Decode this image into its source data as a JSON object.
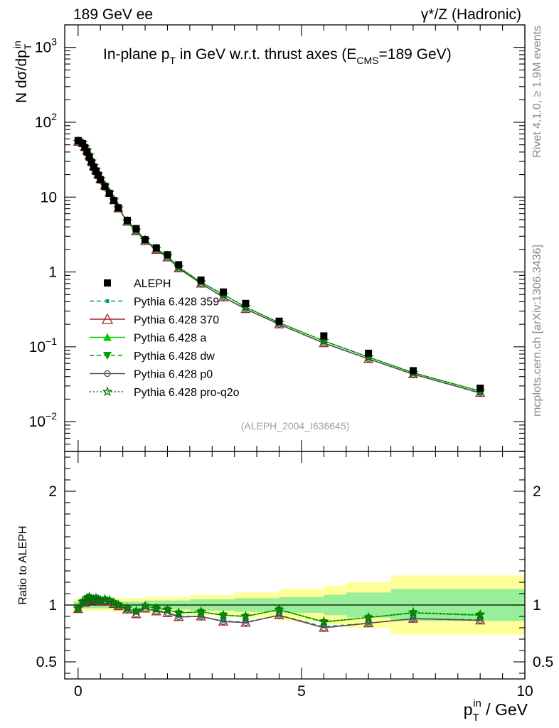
{
  "header": {
    "left_label": "189 GeV ee",
    "right_label": "γ*/Z (Hadronic)"
  },
  "side_labels": {
    "rivet": "Rivet 4.1.0, ≥ 1.9M events",
    "mcplots": "mcplots.cern.ch [arXiv:1306.3436]"
  },
  "colors": {
    "data": "#000000",
    "p359": "#009e73",
    "p370": "#a0202a",
    "pa": "#00cc00",
    "pdw": "#00a000",
    "pp0": "#505050",
    "pq2o": "#007000",
    "band_inner": "#99ee99",
    "band_outer": "#ffff99"
  },
  "chart_data": [
    {
      "type": "scatter",
      "title": "In-plane p_T in GeV w.r.t. thrust axes (E_CMS=189 GeV)",
      "title_parts": {
        "a": "In-plane p",
        "a_sub": "T",
        "b": " in GeV w.r.t. thrust axes (E",
        "b_sub": "CMS",
        "c": "=189 GeV)"
      },
      "ylabel": "N dσ/dp_T^in",
      "ylabel_parts": {
        "main": "N  dσ/dp",
        "sub": "T",
        "sup": "in"
      },
      "xlabel": "p_T^in / GeV",
      "xlim": [
        -0.3,
        10
      ],
      "ylim": [
        0.004,
        2000
      ],
      "yscale": "log",
      "x_ticks": [
        0,
        5,
        10
      ],
      "y_ticks": [
        {
          "value": 1000,
          "base": "10",
          "exp": "3"
        },
        {
          "value": 100,
          "base": "10",
          "exp": "2"
        },
        {
          "value": 10,
          "base": "10",
          "exp": ""
        },
        {
          "value": 1,
          "base": "1",
          "exp": ""
        },
        {
          "value": 0.1,
          "base": "10",
          "exp": "−1"
        },
        {
          "value": 0.01,
          "base": "10",
          "exp": "−2"
        }
      ],
      "watermark": "(ALEPH_2004_I636645)",
      "x": [
        0.0,
        0.1,
        0.15,
        0.2,
        0.25,
        0.3,
        0.35,
        0.4,
        0.45,
        0.5,
        0.6,
        0.7,
        0.8,
        0.9,
        1.1,
        1.3,
        1.5,
        1.75,
        2.0,
        2.25,
        2.75,
        3.25,
        3.75,
        4.5,
        5.5,
        6.5,
        7.5,
        9.0
      ],
      "series": [
        {
          "name": "ALEPH",
          "key": "data",
          "marker": "square",
          "line": "none",
          "values": [
            57,
            52,
            46,
            40,
            34,
            29,
            25,
            22,
            19.5,
            17,
            13.8,
            11.2,
            9.0,
            7.2,
            4.9,
            3.8,
            2.7,
            2.1,
            1.7,
            1.25,
            0.78,
            0.54,
            0.38,
            0.22,
            0.14,
            0.082,
            0.048,
            0.028
          ]
        },
        {
          "name": "Pythia 6.428 359",
          "key": "p359",
          "marker": "small-square",
          "line": "dashed",
          "values": [
            55,
            53,
            47,
            42,
            36,
            30,
            26,
            23,
            20.2,
            17.5,
            14.3,
            11.5,
            9.1,
            7.1,
            4.7,
            3.5,
            2.65,
            2.0,
            1.6,
            1.12,
            0.7,
            0.46,
            0.32,
            0.2,
            0.113,
            0.069,
            0.043,
            0.024
          ]
        },
        {
          "name": "Pythia 6.428 370",
          "key": "p370",
          "marker": "open-triangle",
          "line": "solid",
          "values": [
            55,
            53,
            47,
            42,
            36,
            30,
            26,
            23,
            20.2,
            17.5,
            14.3,
            11.5,
            9.1,
            7.1,
            4.7,
            3.5,
            2.6,
            1.98,
            1.57,
            1.12,
            0.7,
            0.46,
            0.32,
            0.2,
            0.112,
            0.069,
            0.043,
            0.0243
          ]
        },
        {
          "name": "Pythia 6.428 a",
          "key": "pa",
          "marker": "triangle",
          "line": "solid",
          "values": [
            55,
            53,
            47,
            42,
            36,
            30,
            26,
            23,
            20.2,
            17.5,
            14.3,
            11.5,
            9.1,
            7.1,
            4.75,
            3.6,
            2.68,
            2.04,
            1.63,
            1.16,
            0.73,
            0.5,
            0.34,
            0.21,
            0.12,
            0.073,
            0.045,
            0.0256
          ]
        },
        {
          "name": "Pythia 6.428 dw",
          "key": "pdw",
          "marker": "down-triangle",
          "line": "dashed",
          "values": [
            55,
            53,
            47,
            42,
            36,
            30,
            26,
            23,
            20.2,
            17.5,
            14.3,
            11.5,
            9.1,
            7.1,
            4.75,
            3.6,
            2.68,
            2.04,
            1.63,
            1.16,
            0.73,
            0.5,
            0.34,
            0.21,
            0.12,
            0.073,
            0.045,
            0.0256
          ]
        },
        {
          "name": "Pythia 6.428 p0",
          "key": "pp0",
          "marker": "open-circle",
          "line": "solid",
          "values": [
            55,
            53,
            47,
            42,
            36,
            30,
            26,
            23,
            20.2,
            17.5,
            14.3,
            11.5,
            9.1,
            7.1,
            4.7,
            3.5,
            2.6,
            1.98,
            1.57,
            1.12,
            0.7,
            0.46,
            0.32,
            0.2,
            0.112,
            0.069,
            0.043,
            0.0243
          ]
        },
        {
          "name": "Pythia 6.428 pro-q2o",
          "key": "pq2o",
          "marker": "star",
          "line": "dotted",
          "values": [
            55,
            53,
            47,
            42,
            36,
            30,
            26,
            23,
            20.2,
            17.5,
            14.3,
            11.5,
            9.1,
            7.1,
            4.75,
            3.6,
            2.68,
            2.04,
            1.63,
            1.16,
            0.73,
            0.5,
            0.34,
            0.21,
            0.12,
            0.073,
            0.045,
            0.0256
          ]
        }
      ],
      "legend": "center-left"
    },
    {
      "type": "line",
      "title": "Ratio to ALEPH",
      "ylabel": "Ratio to ALEPH",
      "xlabel": "p_T^in / GeV",
      "xlabel_parts": {
        "main": "p",
        "sub": "T",
        "sup": "in",
        "rest": " / GeV"
      },
      "xlim": [
        -0.3,
        10
      ],
      "ylim": [
        0.35,
        2.35
      ],
      "x_ticks": [
        {
          "value": 0,
          "label": "0"
        },
        {
          "value": 5,
          "label": "5"
        },
        {
          "value": 10,
          "label": "10"
        }
      ],
      "y_ticks": [
        {
          "value": 0.5,
          "label": "0.5"
        },
        {
          "value": 1,
          "label": "1"
        },
        {
          "value": 2,
          "label": "2"
        }
      ],
      "reference_line": 1.0,
      "bands": {
        "edges": [
          -0.1,
          0.7,
          1.5,
          2.5,
          3.5,
          4.5,
          5.5,
          6.0,
          7.0,
          10.0
        ],
        "inner_half_width": [
          0.03,
          0.03,
          0.04,
          0.05,
          0.06,
          0.07,
          0.09,
          0.11,
          0.14
        ],
        "outer_half_width": [
          0.05,
          0.06,
          0.07,
          0.09,
          0.11,
          0.14,
          0.17,
          0.2,
          0.26
        ]
      },
      "x": [
        0.0,
        0.1,
        0.15,
        0.2,
        0.25,
        0.3,
        0.35,
        0.4,
        0.45,
        0.5,
        0.6,
        0.7,
        0.8,
        0.9,
        1.1,
        1.3,
        1.5,
        1.75,
        2.0,
        2.25,
        2.75,
        3.25,
        3.75,
        4.5,
        5.5,
        6.5,
        7.5,
        9.0
      ],
      "series": [
        {
          "name": "Pythia 6.428 359",
          "key": "p359",
          "values": [
            0.965,
            1.02,
            1.02,
            1.05,
            1.06,
            1.04,
            1.04,
            1.05,
            1.04,
            1.03,
            1.04,
            1.03,
            1.01,
            0.99,
            0.96,
            0.93,
            0.98,
            0.95,
            0.94,
            0.9,
            0.9,
            0.86,
            0.85,
            0.91,
            0.81,
            0.84,
            0.88,
            0.87
          ]
        },
        {
          "name": "Pythia 6.428 370",
          "key": "p370",
          "values": [
            0.965,
            1.02,
            1.02,
            1.05,
            1.06,
            1.04,
            1.04,
            1.05,
            1.04,
            1.03,
            1.04,
            1.03,
            1.01,
            0.99,
            0.96,
            0.92,
            0.97,
            0.945,
            0.93,
            0.895,
            0.9,
            0.855,
            0.845,
            0.91,
            0.8,
            0.84,
            0.88,
            0.865
          ]
        },
        {
          "name": "Pythia 6.428 a",
          "key": "pa",
          "values": [
            0.97,
            1.03,
            1.03,
            1.06,
            1.07,
            1.05,
            1.05,
            1.06,
            1.05,
            1.04,
            1.05,
            1.04,
            1.02,
            1.0,
            0.97,
            0.945,
            0.99,
            0.97,
            0.96,
            0.93,
            0.94,
            0.91,
            0.9,
            0.96,
            0.85,
            0.89,
            0.93,
            0.91
          ]
        },
        {
          "name": "Pythia 6.428 dw",
          "key": "pdw",
          "values": [
            0.97,
            1.03,
            1.03,
            1.06,
            1.07,
            1.05,
            1.05,
            1.06,
            1.05,
            1.04,
            1.05,
            1.04,
            1.02,
            1.0,
            0.97,
            0.945,
            0.99,
            0.97,
            0.96,
            0.93,
            0.94,
            0.91,
            0.9,
            0.96,
            0.85,
            0.89,
            0.93,
            0.91
          ]
        },
        {
          "name": "Pythia 6.428 p0",
          "key": "pp0",
          "values": [
            0.965,
            1.02,
            1.02,
            1.05,
            1.06,
            1.04,
            1.04,
            1.05,
            1.04,
            1.03,
            1.04,
            1.03,
            1.01,
            0.99,
            0.96,
            0.92,
            0.97,
            0.945,
            0.93,
            0.895,
            0.9,
            0.855,
            0.845,
            0.91,
            0.8,
            0.84,
            0.88,
            0.865
          ]
        },
        {
          "name": "Pythia 6.428 pro-q2o",
          "key": "pq2o",
          "values": [
            0.97,
            1.03,
            1.03,
            1.06,
            1.07,
            1.05,
            1.05,
            1.06,
            1.05,
            1.04,
            1.05,
            1.04,
            1.02,
            1.0,
            0.97,
            0.945,
            0.99,
            0.97,
            0.96,
            0.93,
            0.94,
            0.91,
            0.9,
            0.96,
            0.855,
            0.89,
            0.935,
            0.915
          ]
        }
      ]
    }
  ]
}
